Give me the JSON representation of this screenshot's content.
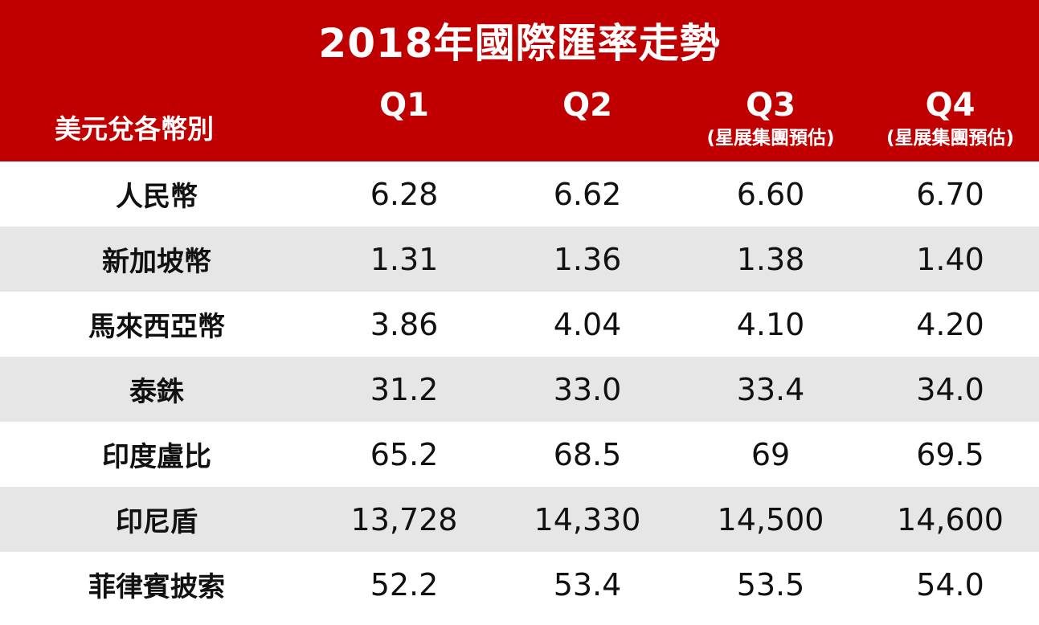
{
  "title": "2018年國際匯率走勢",
  "header": {
    "row_label": "美元兌各幣別",
    "quarters": [
      {
        "label": "Q1",
        "note": ""
      },
      {
        "label": "Q2",
        "note": ""
      },
      {
        "label": "Q3",
        "note": "(星展集團預估)"
      },
      {
        "label": "Q4",
        "note": "(星展集團預估)"
      }
    ]
  },
  "rows": [
    {
      "currency": "人民幣",
      "values": [
        "6.28",
        "6.62",
        "6.60",
        "6.70"
      ]
    },
    {
      "currency": "新加坡幣",
      "values": [
        "1.31",
        "1.36",
        "1.38",
        "1.40"
      ]
    },
    {
      "currency": "馬來西亞幣",
      "values": [
        "3.86",
        "4.04",
        "4.10",
        "4.20"
      ]
    },
    {
      "currency": "泰銖",
      "values": [
        "31.2",
        "33.0",
        "33.4",
        "34.0"
      ]
    },
    {
      "currency": "印度盧比",
      "values": [
        "65.2",
        "68.5",
        "69",
        "69.5"
      ]
    },
    {
      "currency": "印尼盾",
      "values": [
        "13,728",
        "14,330",
        "14,500",
        "14,600"
      ]
    },
    {
      "currency": "菲律賓披索",
      "values": [
        "52.2",
        "53.4",
        "53.5",
        "54.0"
      ]
    }
  ],
  "colors": {
    "header_bg": "#c00000",
    "header_text": "#ffffff",
    "stripe": "#e6e6e6"
  }
}
